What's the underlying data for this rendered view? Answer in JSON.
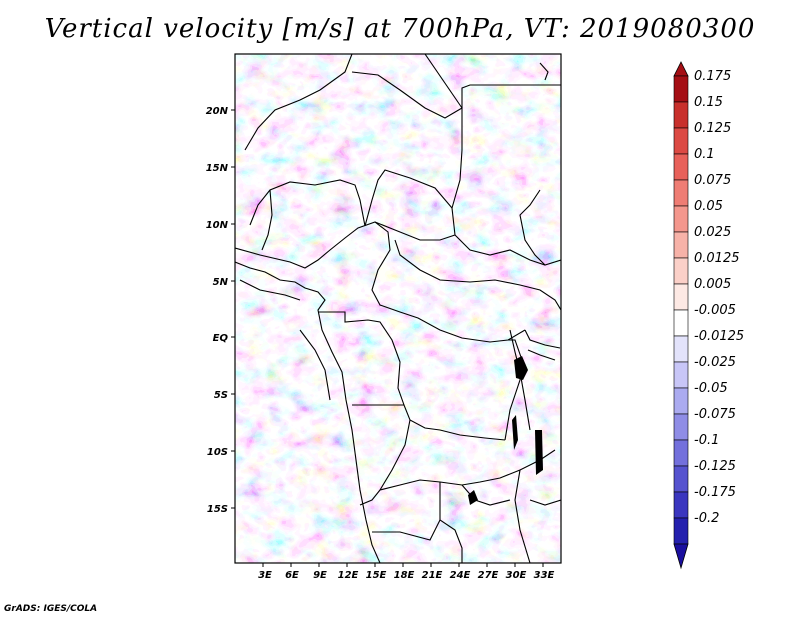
{
  "title": "Vertical velocity [m/s] at 700hPa, VT: 2019080300",
  "credit": "GrADS: IGES/COLA",
  "lat_labels": [
    "20N",
    "15N",
    "10N",
    "5N",
    "EQ",
    "5S",
    "10S",
    "15S"
  ],
  "lon_labels": [
    "3E",
    "6E",
    "9E",
    "12E",
    "15E",
    "18E",
    "21E",
    "24E",
    "27E",
    "30E",
    "33E"
  ],
  "colorbar": {
    "labels": [
      "0.175",
      "0.15",
      "0.125",
      "0.1",
      "0.075",
      "0.05",
      "0.025",
      "0.0125",
      "0.005",
      "-0.005",
      "-0.0125",
      "-0.025",
      "-0.05",
      "-0.075",
      "-0.1",
      "-0.125",
      "-0.175",
      "-0.2"
    ],
    "colors": [
      "#a50f15",
      "#c8302c",
      "#dc4a44",
      "#e8615a",
      "#ef7d74",
      "#f4978d",
      "#f7b2a8",
      "#fbd0c8",
      "#fde9e4",
      "#ffffff",
      "#e3e3fb",
      "#c8c6f7",
      "#ababf0",
      "#8f8de6",
      "#7370dc",
      "#5653cf",
      "#3a36bf",
      "#2420ae",
      "#18129e"
    ],
    "min_arrow_color": "#1a0f9f",
    "max_arrow_color": "#a50f15"
  },
  "map": {
    "lon_range": [
      0,
      35
    ],
    "lat_range": [
      -20,
      24
    ]
  }
}
